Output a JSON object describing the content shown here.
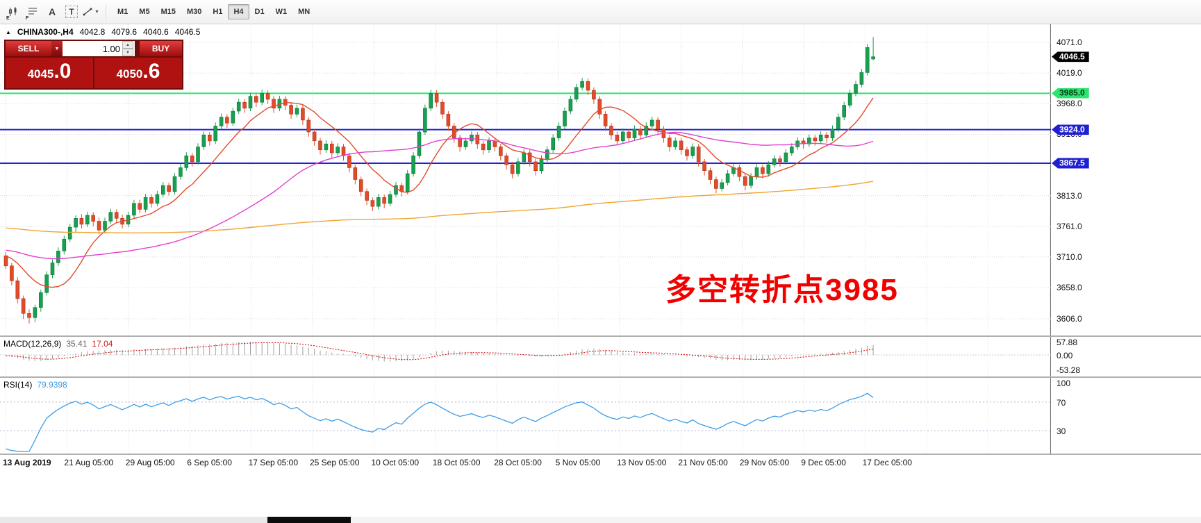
{
  "toolbar": {
    "icon_labels": {
      "e": "E",
      "f": "F",
      "a": "A",
      "t": "T"
    },
    "timeframes": [
      "M1",
      "M5",
      "M15",
      "M30",
      "H1",
      "H4",
      "D1",
      "W1",
      "MN"
    ],
    "active_timeframe": "H4"
  },
  "symbol_info": {
    "name": "CHINA300-,H4",
    "open": "4042.8",
    "high": "4079.6",
    "low": "4040.6",
    "close": "4046.5"
  },
  "trade_panel": {
    "sell_label": "SELL",
    "buy_label": "BUY",
    "volume": "1.00",
    "bid_main": "4045",
    "bid_big": ".0",
    "ask_main": "4050",
    "ask_big": ".6"
  },
  "annotation": {
    "text": "多空转折点3985",
    "color": "#f20000"
  },
  "price_axis": {
    "ticks": [
      "4071.0",
      "4019.0",
      "3968.0",
      "3916.0",
      "3813.0",
      "3761.0",
      "3710.0",
      "3658.0",
      "3606.0"
    ],
    "badges": [
      {
        "value": "4046.5",
        "price": 4046.5,
        "bg": "#000000",
        "fg": "#ffffff",
        "kind": "last-price"
      },
      {
        "value": "3985.0",
        "price": 3985,
        "bg": "#2de46f",
        "fg": "#003c14",
        "kind": "green-line"
      },
      {
        "value": "3924.0",
        "price": 3924,
        "bg": "#1f1fd2",
        "fg": "#ffffff",
        "kind": "blue-line"
      },
      {
        "value": "3867.5",
        "price": 3867.5,
        "bg": "#1f1fd2",
        "fg": "#ffffff",
        "kind": "blue-line"
      }
    ]
  },
  "hlines": [
    {
      "price": 3985,
      "color": "#2de46f"
    },
    {
      "price": 3924,
      "color": "#2121d6"
    },
    {
      "price": 3867.5,
      "color": "#2121d6"
    }
  ],
  "macd_panel": {
    "label": "MACD(12,26,9)",
    "value_main": "35.41",
    "value_signal": "17.04",
    "axis": [
      "57.88",
      "0.00",
      "-53.28"
    ],
    "hist_color": "#a0a0a0",
    "signal_color": "#d40000"
  },
  "rsi_panel": {
    "label": "RSI(14)",
    "value": "79.9398",
    "axis": [
      "100",
      "70",
      "30"
    ],
    "levels": [
      70,
      30
    ],
    "color": "#3b9ce6"
  },
  "time_axis": {
    "labels": [
      "13 Aug 2019",
      "21 Aug 05:00",
      "29 Aug 05:00",
      "6 Sep 05:00",
      "17 Sep 05:00",
      "25 Sep 05:00",
      "10 Oct 05:00",
      "18 Oct 05:00",
      "28 Oct 05:00",
      "5 Nov 05:00",
      "13 Nov 05:00",
      "21 Nov 05:00",
      "29 Nov 05:00",
      "9 Dec 05:00",
      "17 Dec 05:00"
    ]
  },
  "chart_data": {
    "type": "candlestick",
    "symbol": "CHINA300-",
    "timeframe": "H4",
    "ylim": [
      3578,
      4101
    ],
    "grid_prices": [
      4071,
      4019,
      3968,
      3916,
      3865,
      3813,
      3761,
      3710,
      3658,
      3606
    ],
    "up_color": "#18a050",
    "down_color": "#e14b2a",
    "up_border": "#0b7a38",
    "down_border": "#b03418",
    "ma_lines": [
      {
        "name": "fast-ma",
        "period": 10,
        "color": "#e14b2a"
      },
      {
        "name": "mid-ma",
        "period": 45,
        "color": "#e23ed2"
      },
      {
        "name": "slow-ma",
        "period": 200,
        "color": "#f0a432"
      }
    ],
    "candles": [
      [
        3712,
        3718,
        3690,
        3695
      ],
      [
        3695,
        3700,
        3662,
        3670
      ],
      [
        3670,
        3676,
        3632,
        3640
      ],
      [
        3640,
        3645,
        3606,
        3615
      ],
      [
        3615,
        3622,
        3598,
        3608
      ],
      [
        3608,
        3630,
        3600,
        3625
      ],
      [
        3625,
        3655,
        3618,
        3650
      ],
      [
        3650,
        3686,
        3645,
        3680
      ],
      [
        3680,
        3706,
        3674,
        3700
      ],
      [
        3700,
        3726,
        3695,
        3720
      ],
      [
        3720,
        3746,
        3714,
        3740
      ],
      [
        3740,
        3766,
        3735,
        3760
      ],
      [
        3760,
        3780,
        3752,
        3775
      ],
      [
        3775,
        3782,
        3758,
        3765
      ],
      [
        3765,
        3786,
        3760,
        3780
      ],
      [
        3780,
        3785,
        3762,
        3770
      ],
      [
        3770,
        3776,
        3748,
        3755
      ],
      [
        3755,
        3776,
        3750,
        3770
      ],
      [
        3770,
        3791,
        3765,
        3785
      ],
      [
        3785,
        3790,
        3768,
        3775
      ],
      [
        3775,
        3781,
        3758,
        3765
      ],
      [
        3765,
        3786,
        3760,
        3780
      ],
      [
        3780,
        3806,
        3775,
        3800
      ],
      [
        3800,
        3806,
        3783,
        3790
      ],
      [
        3790,
        3816,
        3785,
        3810
      ],
      [
        3810,
        3815,
        3793,
        3800
      ],
      [
        3800,
        3821,
        3795,
        3815
      ],
      [
        3815,
        3836,
        3810,
        3830
      ],
      [
        3830,
        3835,
        3813,
        3820
      ],
      [
        3820,
        3851,
        3815,
        3845
      ],
      [
        3845,
        3866,
        3840,
        3860
      ],
      [
        3860,
        3886,
        3855,
        3880
      ],
      [
        3880,
        3885,
        3862,
        3870
      ],
      [
        3870,
        3901,
        3865,
        3895
      ],
      [
        3895,
        3921,
        3890,
        3915
      ],
      [
        3915,
        3920,
        3897,
        3905
      ],
      [
        3905,
        3936,
        3900,
        3930
      ],
      [
        3930,
        3951,
        3925,
        3945
      ],
      [
        3945,
        3950,
        3927,
        3935
      ],
      [
        3935,
        3961,
        3930,
        3955
      ],
      [
        3955,
        3976,
        3950,
        3970
      ],
      [
        3970,
        3975,
        3952,
        3960
      ],
      [
        3960,
        3986,
        3955,
        3980
      ],
      [
        3980,
        3985,
        3962,
        3970
      ],
      [
        3970,
        3991,
        3965,
        3985
      ],
      [
        3985,
        3990,
        3967,
        3975
      ],
      [
        3975,
        3980,
        3952,
        3960
      ],
      [
        3960,
        3981,
        3955,
        3975
      ],
      [
        3975,
        3980,
        3957,
        3965
      ],
      [
        3965,
        3970,
        3942,
        3950
      ],
      [
        3950,
        3966,
        3945,
        3960
      ],
      [
        3960,
        3965,
        3932,
        3940
      ],
      [
        3940,
        3945,
        3912,
        3920
      ],
      [
        3920,
        3925,
        3897,
        3905
      ],
      [
        3905,
        3910,
        3882,
        3890
      ],
      [
        3890,
        3906,
        3885,
        3900
      ],
      [
        3900,
        3905,
        3877,
        3885
      ],
      [
        3885,
        3901,
        3880,
        3895
      ],
      [
        3895,
        3900,
        3872,
        3880
      ],
      [
        3880,
        3885,
        3852,
        3860
      ],
      [
        3860,
        3865,
        3832,
        3840
      ],
      [
        3840,
        3845,
        3812,
        3820
      ],
      [
        3820,
        3825,
        3797,
        3805
      ],
      [
        3805,
        3810,
        3787,
        3795
      ],
      [
        3795,
        3816,
        3790,
        3810
      ],
      [
        3810,
        3815,
        3792,
        3800
      ],
      [
        3800,
        3821,
        3795,
        3815
      ],
      [
        3815,
        3836,
        3810,
        3830
      ],
      [
        3830,
        3835,
        3812,
        3820
      ],
      [
        3820,
        3856,
        3815,
        3850
      ],
      [
        3850,
        3886,
        3845,
        3880
      ],
      [
        3880,
        3926,
        3875,
        3920
      ],
      [
        3920,
        3966,
        3915,
        3960
      ],
      [
        3960,
        3991,
        3955,
        3985
      ],
      [
        3985,
        3990,
        3962,
        3970
      ],
      [
        3970,
        3975,
        3942,
        3950
      ],
      [
        3950,
        3955,
        3922,
        3930
      ],
      [
        3930,
        3935,
        3902,
        3910
      ],
      [
        3910,
        3915,
        3887,
        3895
      ],
      [
        3895,
        3911,
        3890,
        3905
      ],
      [
        3905,
        3921,
        3900,
        3915
      ],
      [
        3915,
        3920,
        3892,
        3900
      ],
      [
        3900,
        3905,
        3882,
        3890
      ],
      [
        3890,
        3911,
        3885,
        3905
      ],
      [
        3905,
        3910,
        3887,
        3895
      ],
      [
        3895,
        3900,
        3872,
        3880
      ],
      [
        3880,
        3885,
        3857,
        3865
      ],
      [
        3865,
        3870,
        3842,
        3850
      ],
      [
        3850,
        3876,
        3845,
        3870
      ],
      [
        3870,
        3891,
        3865,
        3885
      ],
      [
        3885,
        3890,
        3862,
        3870
      ],
      [
        3870,
        3875,
        3847,
        3855
      ],
      [
        3855,
        3881,
        3850,
        3875
      ],
      [
        3875,
        3896,
        3870,
        3890
      ],
      [
        3890,
        3916,
        3885,
        3910
      ],
      [
        3910,
        3936,
        3905,
        3930
      ],
      [
        3930,
        3961,
        3925,
        3955
      ],
      [
        3955,
        3981,
        3950,
        3975
      ],
      [
        3975,
        4001,
        3970,
        3995
      ],
      [
        3995,
        4011,
        3990,
        4005
      ],
      [
        4005,
        4010,
        3982,
        3990
      ],
      [
        3990,
        3995,
        3967,
        3975
      ],
      [
        3975,
        3980,
        3942,
        3950
      ],
      [
        3950,
        3955,
        3922,
        3930
      ],
      [
        3930,
        3935,
        3907,
        3915
      ],
      [
        3915,
        3920,
        3897,
        3905
      ],
      [
        3905,
        3926,
        3900,
        3920
      ],
      [
        3920,
        3925,
        3902,
        3910
      ],
      [
        3910,
        3931,
        3905,
        3925
      ],
      [
        3925,
        3930,
        3907,
        3915
      ],
      [
        3915,
        3936,
        3910,
        3930
      ],
      [
        3930,
        3946,
        3925,
        3940
      ],
      [
        3940,
        3945,
        3917,
        3925
      ],
      [
        3925,
        3930,
        3902,
        3910
      ],
      [
        3910,
        3915,
        3887,
        3895
      ],
      [
        3895,
        3911,
        3890,
        3905
      ],
      [
        3905,
        3910,
        3882,
        3890
      ],
      [
        3890,
        3895,
        3872,
        3880
      ],
      [
        3880,
        3901,
        3875,
        3895
      ],
      [
        3895,
        3900,
        3862,
        3870
      ],
      [
        3870,
        3875,
        3847,
        3855
      ],
      [
        3855,
        3860,
        3832,
        3840
      ],
      [
        3840,
        3845,
        3817,
        3825
      ],
      [
        3825,
        3841,
        3820,
        3835
      ],
      [
        3835,
        3856,
        3830,
        3850
      ],
      [
        3850,
        3866,
        3845,
        3860
      ],
      [
        3860,
        3865,
        3837,
        3845
      ],
      [
        3845,
        3850,
        3822,
        3830
      ],
      [
        3830,
        3851,
        3825,
        3845
      ],
      [
        3845,
        3866,
        3840,
        3860
      ],
      [
        3860,
        3865,
        3842,
        3850
      ],
      [
        3850,
        3871,
        3845,
        3865
      ],
      [
        3865,
        3881,
        3860,
        3875
      ],
      [
        3875,
        3880,
        3862,
        3870
      ],
      [
        3870,
        3891,
        3865,
        3885
      ],
      [
        3885,
        3901,
        3880,
        3895
      ],
      [
        3895,
        3911,
        3890,
        3905
      ],
      [
        3905,
        3910,
        3892,
        3900
      ],
      [
        3900,
        3916,
        3895,
        3910
      ],
      [
        3910,
        3915,
        3897,
        3905
      ],
      [
        3905,
        3921,
        3900,
        3915
      ],
      [
        3915,
        3920,
        3902,
        3910
      ],
      [
        3910,
        3931,
        3905,
        3925
      ],
      [
        3925,
        3951,
        3920,
        3945
      ],
      [
        3945,
        3971,
        3940,
        3965
      ],
      [
        3965,
        3991,
        3960,
        3985
      ],
      [
        3985,
        4006,
        3980,
        4000
      ],
      [
        4000,
        4026,
        3995,
        4020
      ],
      [
        4020,
        4068,
        4015,
        4062
      ],
      [
        4042.8,
        4079.6,
        4040.6,
        4046.5
      ]
    ]
  }
}
